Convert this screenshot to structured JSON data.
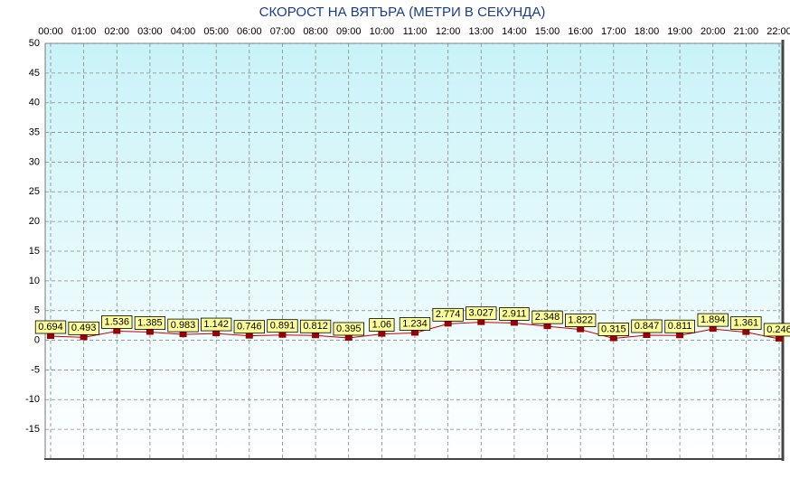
{
  "chart_data": {
    "type": "line",
    "title": "СКОРОСТ НА ВЯТЪРА (МЕТРИ В СЕКУНДА)",
    "categories": [
      "00:00",
      "01:00",
      "02:00",
      "03:00",
      "04:00",
      "05:00",
      "06:00",
      "07:00",
      "08:00",
      "09:00",
      "10:00",
      "11:00",
      "12:00",
      "13:00",
      "14:00",
      "15:00",
      "16:00",
      "17:00",
      "18:00",
      "19:00",
      "20:00",
      "21:00",
      "22:00"
    ],
    "series": [
      {
        "color": "#cc0000",
        "marker_color": "#990000",
        "label_color": "#ffff99",
        "values": [
          0.694,
          0.493,
          1.536,
          1.385,
          0.983,
          1.142,
          0.746,
          0.891,
          0.812,
          0.395,
          1.06,
          1.234,
          2.774,
          3.027,
          2.911,
          2.348,
          1.822,
          0.315,
          0.847,
          0.811,
          1.894,
          1.361,
          0.246
        ]
      }
    ],
    "ylim": [
      -20,
      50
    ],
    "yticks": [
      -15,
      -10,
      -5,
      0,
      5,
      10,
      15,
      20,
      25,
      30,
      35,
      40,
      45,
      50
    ],
    "grid": true
  }
}
